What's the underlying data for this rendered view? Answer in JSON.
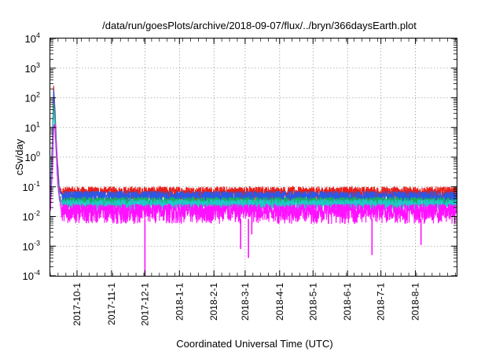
{
  "chart_data": {
    "type": "line",
    "title": "/data/run/goesPlots/archive/2018-09-07/flux/../bryn/366daysEarth.plot",
    "xlabel": "Coordinated Universal Time (UTC)",
    "ylabel": "cSv/day",
    "yscale": "log",
    "ylim": [
      0.0001,
      10000
    ],
    "xlim": [
      "2017-09-07",
      "2018-09-07"
    ],
    "grid": true,
    "legend": "none",
    "x_tick_labels": [
      "2017-10-1",
      "2017-11-1",
      "2017-12-1",
      "2018-1-1",
      "2018-2-1",
      "2018-3-1",
      "2018-4-1",
      "2018-5-1",
      "2018-6-1",
      "2018-7-1",
      "2018-8-1"
    ],
    "y_tick_labels": [
      {
        "base": "10",
        "exp": "-4"
      },
      {
        "base": "10",
        "exp": "-3"
      },
      {
        "base": "10",
        "exp": "-2"
      },
      {
        "base": "10",
        "exp": "-1"
      },
      {
        "base": "10",
        "exp": "0"
      },
      {
        "base": "10",
        "exp": "1"
      },
      {
        "base": "10",
        "exp": "2"
      },
      {
        "base": "10",
        "exp": "3"
      },
      {
        "base": "10",
        "exp": "4"
      }
    ],
    "series": [
      {
        "color": "#e8201a",
        "baseline": 0.06,
        "noise_low": 0.5,
        "noise_high": 1.7,
        "x": [
          "2017-09-07",
          "2017-09-09",
          "2017-09-10",
          "2017-09-11",
          "2017-09-13",
          "2017-09-15",
          "2017-09-18",
          "2018-09-07"
        ],
        "y": [
          0.06,
          5,
          230,
          60,
          1.2,
          0.1,
          0.06,
          0.06
        ]
      },
      {
        "color": "#2a58e8",
        "baseline": 0.045,
        "noise_low": 0.55,
        "noise_high": 1.6,
        "x": [
          "2017-09-07",
          "2017-09-09",
          "2017-09-10",
          "2017-09-11",
          "2017-09-13",
          "2017-09-15",
          "2017-09-18",
          "2018-09-07"
        ],
        "y": [
          0.045,
          4,
          180,
          45,
          0.9,
          0.08,
          0.045,
          0.045
        ]
      },
      {
        "color": "#18b060",
        "baseline": 0.03,
        "noise_low": 0.6,
        "noise_high": 1.5,
        "x": [
          "2017-09-07",
          "2017-09-09",
          "2017-09-10",
          "2017-09-11",
          "2017-09-13",
          "2017-09-15",
          "2017-09-18",
          "2018-09-07"
        ],
        "y": [
          0.03,
          2,
          60,
          25,
          0.5,
          0.05,
          0.03,
          0.03
        ]
      },
      {
        "color": "#20c8c8",
        "baseline": 0.025,
        "noise_low": 0.6,
        "noise_high": 1.5,
        "x": [
          "2017-09-07",
          "2017-09-09",
          "2017-09-10",
          "2017-09-11",
          "2017-09-13",
          "2017-09-15",
          "2017-09-18",
          "2018-09-07"
        ],
        "y": [
          0.025,
          1.5,
          40,
          15,
          0.3,
          0.04,
          0.025,
          0.025
        ]
      },
      {
        "color": "#ff10ff",
        "baseline": 0.014,
        "noise_low": 0.4,
        "noise_high": 1.9,
        "x": [
          "2017-09-07",
          "2017-09-09",
          "2017-09-10",
          "2017-09-11",
          "2017-09-12",
          "2017-09-14",
          "2017-09-17",
          "2018-09-07"
        ],
        "y": [
          0.014,
          0.5,
          10,
          12,
          3,
          0.1,
          0.014,
          0.014
        ],
        "dips": [
          {
            "x": "2017-12-01",
            "y": 0.0001
          },
          {
            "x": "2018-02-25",
            "y": 0.0008
          },
          {
            "x": "2018-03-04",
            "y": 0.0004
          },
          {
            "x": "2018-03-07",
            "y": 0.0025
          },
          {
            "x": "2018-06-23",
            "y": 0.0005
          },
          {
            "x": "2018-08-06",
            "y": 0.0011
          }
        ]
      }
    ]
  }
}
